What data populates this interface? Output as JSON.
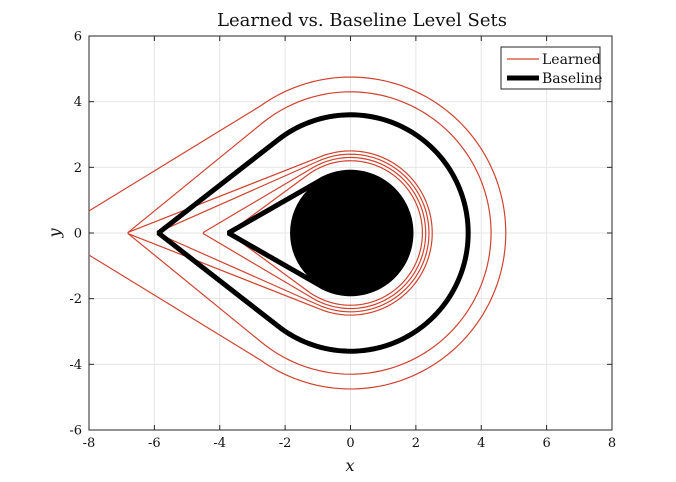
{
  "chart_data": {
    "type": "line",
    "title": "Learned vs. Baseline Level Sets",
    "xlabel": "x",
    "ylabel": "y",
    "xlim": [
      -8,
      8
    ],
    "ylim": [
      -6,
      6
    ],
    "xticks": [
      "-8",
      "-6",
      "-4",
      "-2",
      "0",
      "2",
      "4",
      "6",
      "8"
    ],
    "yticks": [
      "-6",
      "-4",
      "-2",
      "0",
      "2",
      "4",
      "6"
    ],
    "grid": true,
    "legend_position": "top-right",
    "obstacle": {
      "shape": "disk",
      "center": [
        0,
        0
      ],
      "radius": 1.85,
      "color": "#000000"
    },
    "series": [
      {
        "name": "Learned",
        "color": "#d0432f",
        "curves": [
          {
            "radius": 2.2,
            "tip_x": -3.7,
            "tip_halfwidth": 0.02
          },
          {
            "radius": 2.3,
            "tip_x": -4.5,
            "tip_halfwidth": 0.02
          },
          {
            "radius": 2.4,
            "tip_x": -5.9,
            "tip_halfwidth": 0.02
          },
          {
            "radius": 2.5,
            "tip_x": -6.8,
            "tip_halfwidth": 0.02
          },
          {
            "radius": 4.3,
            "tip_x": -6.8,
            "tip_halfwidth": 0.02
          },
          {
            "radius": 4.75,
            "tip_x": -8.2,
            "tip_halfwidth": 0.55
          }
        ]
      },
      {
        "name": "Baseline",
        "color": "#000000",
        "curves": [
          {
            "radius": 1.85,
            "tip_x": -3.7,
            "tip_halfwidth": 0.02
          },
          {
            "radius": 3.6,
            "tip_x": -5.85,
            "tip_halfwidth": 0.02
          }
        ]
      }
    ]
  }
}
